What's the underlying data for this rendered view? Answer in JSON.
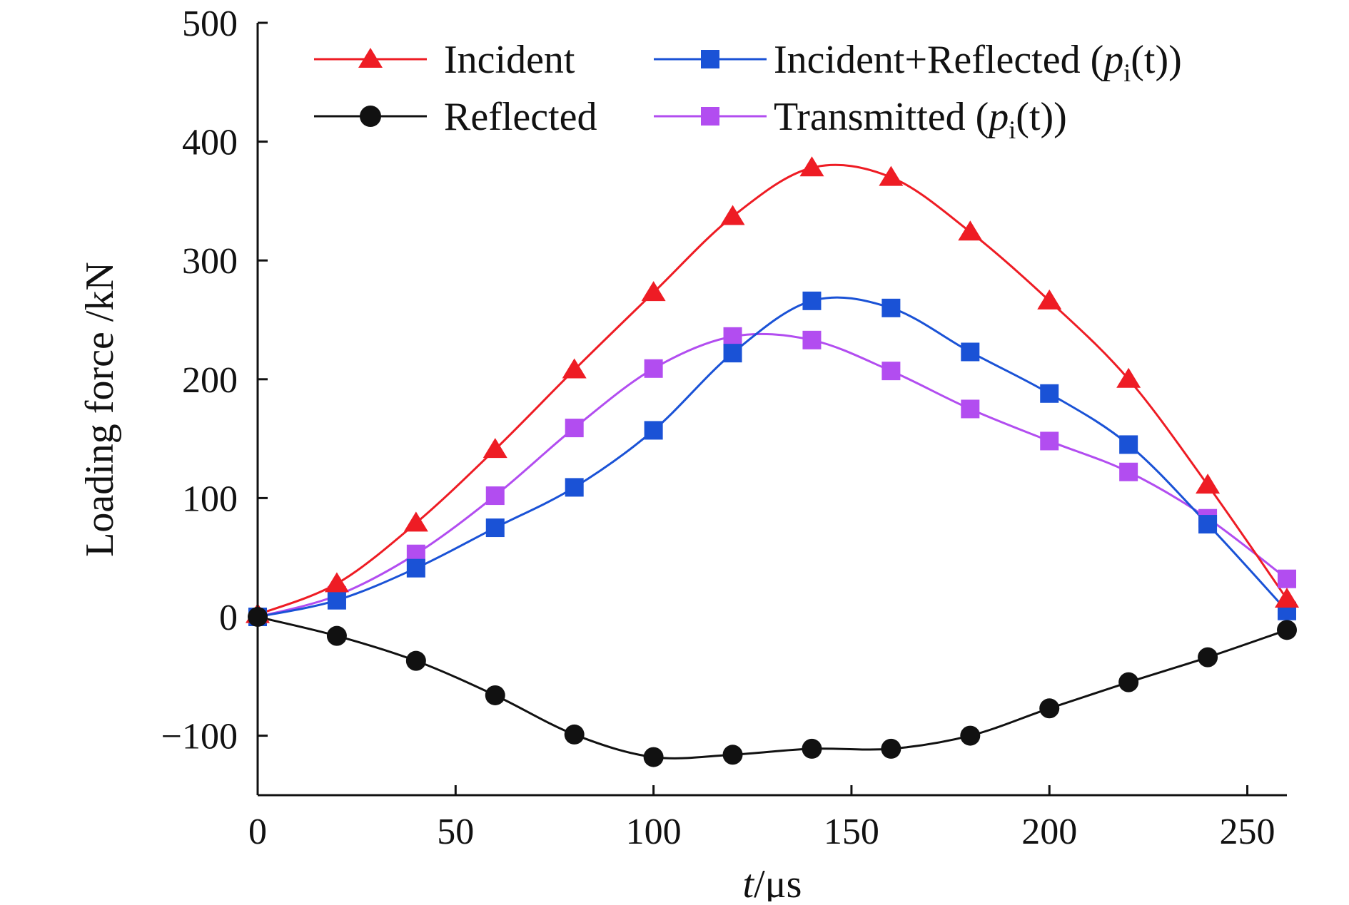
{
  "chart_data": {
    "type": "line",
    "xlabel": "t/μs",
    "ylabel": "Loading force /kN",
    "xlim": [
      0,
      260
    ],
    "ylim": [
      -150,
      500
    ],
    "x_ticks": [
      "0",
      "50",
      "100",
      "150",
      "200",
      "250"
    ],
    "x_tick_values": [
      0,
      50,
      100,
      150,
      200,
      250
    ],
    "y_ticks": [
      "500",
      "400",
      "300",
      "200",
      "100",
      "0",
      "−100"
    ],
    "y_tick_values": [
      500,
      400,
      300,
      200,
      100,
      0,
      -100
    ],
    "grid": false,
    "legend_position": "top",
    "series": [
      {
        "name": "Incident",
        "color": "#ee1c24",
        "marker": "triangle",
        "x": [
          0,
          20,
          40,
          60,
          80,
          100,
          120,
          140,
          160,
          180,
          200,
          220,
          240,
          260
        ],
        "y": [
          2,
          28,
          79,
          141,
          208,
          273,
          337,
          378,
          370,
          324,
          266,
          200,
          111,
          15
        ]
      },
      {
        "name": "Reflected",
        "color": "#111111",
        "marker": "circle",
        "x": [
          0,
          20,
          40,
          60,
          80,
          100,
          120,
          140,
          160,
          180,
          200,
          220,
          240,
          260
        ],
        "y": [
          0,
          -16,
          -37,
          -66,
          -99,
          -118,
          -116,
          -111,
          -111,
          -100,
          -77,
          -55,
          -34,
          -11
        ]
      },
      {
        "name": "Incident+Reflected (p_i(t))",
        "color": "#1a52d6",
        "marker": "square",
        "x": [
          0,
          20,
          40,
          60,
          80,
          100,
          120,
          140,
          160,
          180,
          200,
          220,
          240,
          260
        ],
        "y": [
          0,
          14,
          41,
          75,
          109,
          157,
          222,
          266,
          260,
          223,
          188,
          145,
          78,
          5
        ]
      },
      {
        "name": "Transmitted (p_i(t))",
        "color": "#b24df0",
        "marker": "square",
        "x": [
          0,
          20,
          40,
          60,
          80,
          100,
          120,
          140,
          160,
          180,
          200,
          220,
          240,
          260
        ],
        "y": [
          0,
          18,
          53,
          102,
          159,
          209,
          236,
          233,
          207,
          175,
          148,
          122,
          83,
          32
        ]
      }
    ],
    "legend": [
      {
        "series": 0,
        "text": "Incident"
      },
      {
        "series": 1,
        "text": "Reflected"
      },
      {
        "series": 2,
        "text_main": "Incident+Reflected (",
        "text_p": "p",
        "text_sub": "i",
        "text_tail": "(t))"
      },
      {
        "series": 3,
        "text_main": "Transmitted (",
        "text_p": "p",
        "text_sub": "i",
        "text_tail": "(t))"
      }
    ],
    "xlabel_parts": {
      "italic": "t",
      "rest": "/μs"
    }
  }
}
